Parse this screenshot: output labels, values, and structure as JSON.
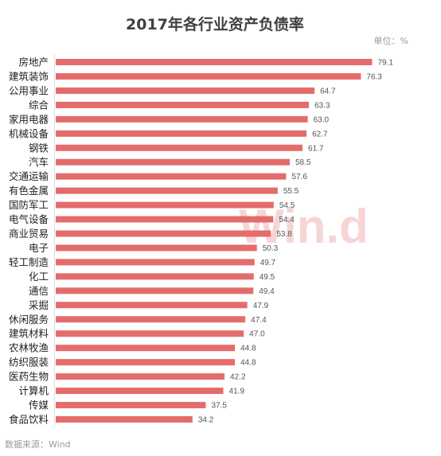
{
  "chart_data": {
    "type": "bar",
    "orientation": "horizontal",
    "title": "2017年各行业资产负债率",
    "unit": "单位：%",
    "source": "数据来源：Wind",
    "categories": [
      "房地产",
      "建筑装饰",
      "公用事业",
      "综合",
      "家用电器",
      "机械设备",
      "钢铁",
      "汽车",
      "交通运输",
      "有色金属",
      "国防军工",
      "电气设备",
      "商业贸易",
      "电子",
      "轻工制造",
      "化工",
      "通信",
      "采掘",
      "休闲服务",
      "建筑材料",
      "农林牧渔",
      "纺织服装",
      "医药生物",
      "计算机",
      "传媒",
      "食品饮料"
    ],
    "values": [
      79.1,
      76.3,
      64.7,
      63.3,
      63.0,
      62.7,
      61.7,
      58.5,
      57.6,
      55.5,
      54.5,
      54.4,
      53.8,
      50.3,
      49.7,
      49.5,
      49.4,
      47.9,
      47.4,
      47.0,
      44.8,
      44.8,
      42.2,
      41.9,
      37.5,
      34.2
    ],
    "data_labels": [
      "79.1",
      "76.3",
      "64.7",
      "63.3",
      "63.0",
      "62.7",
      "61.7",
      "58.5",
      "57.6",
      "55.5",
      "54.5",
      "54.4",
      "53.8",
      "50.3",
      "49.7",
      "49.5",
      "49.4",
      "47.9",
      "47.4",
      "47.0",
      "44.8",
      "44.8",
      "42.2",
      "41.9",
      "37.5",
      "34.2"
    ],
    "xlim": [
      0,
      80
    ],
    "grid": false,
    "legend": "none"
  },
  "watermark": {
    "text": "Win.d",
    "color": "#e46c6c"
  },
  "colors": {
    "bar": "#e46c6c",
    "axis": "#dddddd"
  }
}
